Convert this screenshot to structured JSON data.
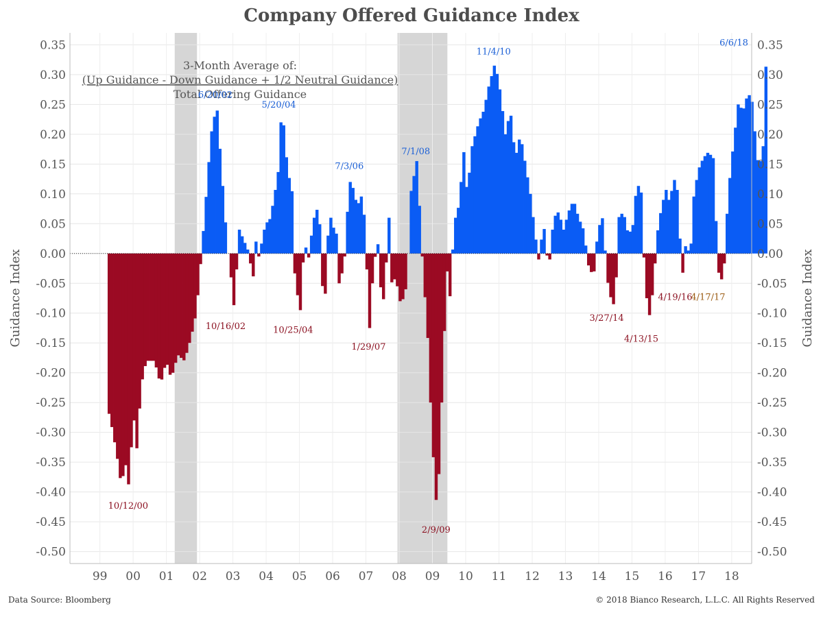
{
  "chart_data": {
    "type": "bar",
    "title": "Company Offered Guidance Index",
    "subtitle": [
      "3-Month Average of:",
      "(Up Guidance - Down Guidance + 1/2 Neutral Guidance)",
      "Total Offering Guidance"
    ],
    "ylabel_left": "Guidance Index",
    "ylabel_right": "Guidance Index",
    "ylim": [
      -0.52,
      0.37
    ],
    "xlim": [
      1998.1,
      2018.6
    ],
    "y_ticks": [
      0.35,
      0.3,
      0.25,
      0.2,
      0.15,
      0.1,
      0.05,
      0.0,
      -0.05,
      -0.1,
      -0.15,
      -0.2,
      -0.25,
      -0.3,
      -0.35,
      -0.4,
      -0.45,
      -0.5
    ],
    "y_tick_labels": [
      "0.35",
      "0.30",
      "0.25",
      "0.20",
      "0.15",
      "0.10",
      "0.05",
      "0.00",
      "-0.05",
      "-0.10",
      "-0.15",
      "-0.20",
      "-0.25",
      "-0.30",
      "-0.35",
      "-0.40",
      "-0.45",
      "-0.50"
    ],
    "x_ticks": [
      1999,
      2000,
      2001,
      2002,
      2003,
      2004,
      2005,
      2006,
      2007,
      2008,
      2009,
      2010,
      2011,
      2012,
      2013,
      2014,
      2015,
      2016,
      2017,
      2018
    ],
    "x_tick_labels": [
      "99",
      "00",
      "01",
      "02",
      "03",
      "04",
      "05",
      "06",
      "07",
      "08",
      "09",
      "10",
      "11",
      "12",
      "13",
      "14",
      "15",
      "16",
      "17",
      "18"
    ],
    "grid": true,
    "colors": {
      "positive": "#0a5cf5",
      "negative": "#9b0a23",
      "recession": "#d6d6d6",
      "label_blue": "#1a5fd6",
      "label_red": "#8b1020",
      "label_orange": "#9a5a10"
    },
    "recessions": [
      [
        2001.25,
        2001.92
      ],
      [
        2007.95,
        2009.45
      ]
    ],
    "series": [
      {
        "values": [
          [
            1999.15,
            0
          ],
          [
            1999.2,
            -0.26
          ],
          [
            1999.35,
            -0.3
          ],
          [
            1999.5,
            -0.35
          ],
          [
            1999.6,
            -0.39
          ],
          [
            1999.72,
            -0.35
          ],
          [
            1999.85,
            -0.4
          ],
          [
            1999.95,
            -0.25
          ],
          [
            2000.05,
            -0.34
          ],
          [
            2000.2,
            -0.22
          ],
          [
            2000.35,
            -0.18
          ],
          [
            2000.5,
            -0.18
          ],
          [
            2000.6,
            -0.18
          ],
          [
            2000.78,
            -0.22
          ],
          [
            2000.95,
            -0.18
          ],
          [
            2001.1,
            -0.21
          ],
          [
            2001.3,
            -0.17
          ],
          [
            2001.5,
            -0.18
          ],
          [
            2001.7,
            -0.14
          ],
          [
            2001.85,
            -0.1
          ],
          [
            2001.95,
            -0.04
          ],
          [
            2002.1,
            0.06
          ],
          [
            2002.3,
            0.2
          ],
          [
            2002.47,
            0.25
          ],
          [
            2002.6,
            0.15
          ],
          [
            2002.75,
            0.04
          ],
          [
            2002.85,
            -0.02
          ],
          [
            2002.95,
            -0.06
          ],
          [
            2003.0,
            -0.1
          ],
          [
            2003.05,
            -0.04
          ],
          [
            2003.15,
            0.04
          ],
          [
            2003.3,
            0.02
          ],
          [
            2003.45,
            0.0
          ],
          [
            2003.55,
            -0.05
          ],
          [
            2003.65,
            0.02
          ],
          [
            2003.75,
            -0.01
          ],
          [
            2003.85,
            0.03
          ],
          [
            2003.95,
            0.05
          ],
          [
            2004.1,
            0.06
          ],
          [
            2004.2,
            0.1
          ],
          [
            2004.3,
            0.12
          ],
          [
            2004.4,
            0.22
          ],
          [
            2004.46,
            0.23
          ],
          [
            2004.6,
            0.14
          ],
          [
            2004.75,
            0.1
          ],
          [
            2004.82,
            -0.04
          ],
          [
            2004.9,
            -0.07
          ],
          [
            2004.97,
            -0.11
          ],
          [
            2005.05,
            -0.02
          ],
          [
            2005.15,
            0.01
          ],
          [
            2005.25,
            -0.01
          ],
          [
            2005.35,
            0.05
          ],
          [
            2005.45,
            0.07
          ],
          [
            2005.55,
            0.08
          ],
          [
            2005.62,
            -0.05
          ],
          [
            2005.75,
            -0.07
          ],
          [
            2005.85,
            0.08
          ],
          [
            2005.95,
            0.04
          ],
          [
            2006.05,
            0.05
          ],
          [
            2006.15,
            -0.05
          ],
          [
            2006.3,
            -0.02
          ],
          [
            2006.4,
            0.07
          ],
          [
            2006.5,
            0.13
          ],
          [
            2006.6,
            0.1
          ],
          [
            2006.7,
            0.08
          ],
          [
            2006.85,
            0.1
          ],
          [
            2006.95,
            0.03
          ],
          [
            2007.05,
            -0.14
          ],
          [
            2007.15,
            -0.05
          ],
          [
            2007.3,
            0.03
          ],
          [
            2007.45,
            -0.1
          ],
          [
            2007.55,
            -0.03
          ],
          [
            2007.65,
            0.06
          ],
          [
            2007.75,
            -0.07
          ],
          [
            2007.85,
            -0.03
          ],
          [
            2007.95,
            -0.08
          ],
          [
            2008.05,
            -0.08
          ],
          [
            2008.2,
            -0.05
          ],
          [
            2008.3,
            0.1
          ],
          [
            2008.5,
            0.16
          ],
          [
            2008.6,
            0.04
          ],
          [
            2008.7,
            -0.05
          ],
          [
            2008.8,
            -0.12
          ],
          [
            2008.9,
            -0.25
          ],
          [
            2009.0,
            -0.36
          ],
          [
            2009.1,
            -0.44
          ],
          [
            2009.2,
            -0.3
          ],
          [
            2009.3,
            -0.15
          ],
          [
            2009.4,
            -0.03
          ],
          [
            2009.5,
            -0.08
          ],
          [
            2009.6,
            0.05
          ],
          [
            2009.75,
            0.08
          ],
          [
            2009.9,
            0.17
          ],
          [
            2010.0,
            0.1
          ],
          [
            2010.15,
            0.18
          ],
          [
            2010.35,
            0.22
          ],
          [
            2010.5,
            0.24
          ],
          [
            2010.65,
            0.28
          ],
          [
            2010.84,
            0.32
          ],
          [
            2011.0,
            0.27
          ],
          [
            2011.15,
            0.2
          ],
          [
            2011.3,
            0.24
          ],
          [
            2011.45,
            0.16
          ],
          [
            2011.6,
            0.2
          ],
          [
            2011.75,
            0.15
          ],
          [
            2011.9,
            0.1
          ],
          [
            2012.05,
            0.03
          ],
          [
            2012.15,
            -0.01
          ],
          [
            2012.3,
            0.05
          ],
          [
            2012.45,
            -0.03
          ],
          [
            2012.6,
            0.06
          ],
          [
            2012.75,
            0.07
          ],
          [
            2012.9,
            0.04
          ],
          [
            2013.05,
            0.07
          ],
          [
            2013.2,
            0.09
          ],
          [
            2013.35,
            0.06
          ],
          [
            2013.5,
            0.04
          ],
          [
            2013.65,
            -0.02
          ],
          [
            2013.8,
            -0.04
          ],
          [
            2013.9,
            0.02
          ],
          [
            2014.05,
            0.07
          ],
          [
            2014.25,
            -0.06
          ],
          [
            2014.35,
            -0.08
          ],
          [
            2014.45,
            -0.09
          ],
          [
            2014.55,
            0.06
          ],
          [
            2014.7,
            0.07
          ],
          [
            2014.85,
            0.03
          ],
          [
            2015.0,
            0.05
          ],
          [
            2015.1,
            0.12
          ],
          [
            2015.25,
            0.1
          ],
          [
            2015.35,
            -0.06
          ],
          [
            2015.45,
            -0.09
          ],
          [
            2015.5,
            -0.11
          ],
          [
            2015.6,
            -0.05
          ],
          [
            2015.75,
            0.05
          ],
          [
            2015.9,
            0.09
          ],
          [
            2016.0,
            0.11
          ],
          [
            2016.1,
            0.08
          ],
          [
            2016.2,
            0.13
          ],
          [
            2016.35,
            0.1
          ],
          [
            2016.45,
            -0.05
          ],
          [
            2016.6,
            0.03
          ],
          [
            2016.7,
            -0.02
          ],
          [
            2016.8,
            0.09
          ],
          [
            2016.95,
            0.14
          ],
          [
            2017.1,
            0.16
          ],
          [
            2017.25,
            0.17
          ],
          [
            2017.4,
            0.16
          ],
          [
            2017.55,
            -0.03
          ],
          [
            2017.7,
            -0.05
          ],
          [
            2017.85,
            0.1
          ],
          [
            2018.0,
            0.18
          ],
          [
            2018.15,
            0.25
          ],
          [
            2018.3,
            0.24
          ],
          [
            2018.45,
            0.27
          ],
          [
            2018.6,
            0.25
          ],
          [
            2018.7,
            0.16
          ],
          [
            2018.8,
            0.15
          ],
          [
            2018.9,
            0.18
          ],
          [
            2019.0,
            0.34
          ]
        ]
      }
    ],
    "annotations": [
      {
        "label": "6/20/02",
        "x": 2002.47,
        "y": 0.25,
        "color": "label_blue"
      },
      {
        "label": "5/20/04",
        "x": 2004.38,
        "y": 0.233,
        "color": "label_blue"
      },
      {
        "label": "7/3/06",
        "x": 2006.5,
        "y": 0.13,
        "color": "label_blue"
      },
      {
        "label": "7/1/08",
        "x": 2008.5,
        "y": 0.155,
        "color": "label_blue"
      },
      {
        "label": "11/4/10",
        "x": 2010.84,
        "y": 0.322,
        "color": "label_blue"
      },
      {
        "label": "6/6/18",
        "x": 2019.0,
        "y": 0.337,
        "color": "label_blue"
      },
      {
        "label": "10/12/00",
        "x": 1999.85,
        "y": -0.405,
        "color": "label_red"
      },
      {
        "label": "10/16/02",
        "x": 2002.78,
        "y": -0.104,
        "color": "label_red"
      },
      {
        "label": "10/25/04",
        "x": 2004.81,
        "y": -0.11,
        "color": "label_red"
      },
      {
        "label": "1/29/07",
        "x": 2007.08,
        "y": -0.138,
        "color": "label_red"
      },
      {
        "label": "2/9/09",
        "x": 2009.11,
        "y": -0.445,
        "color": "label_red"
      },
      {
        "label": "3/27/14",
        "x": 2014.24,
        "y": -0.09,
        "color": "label_red"
      },
      {
        "label": "4/13/15",
        "x": 2015.28,
        "y": -0.125,
        "color": "label_red"
      },
      {
        "label": "4/19/16",
        "x": 2016.3,
        "y": -0.055,
        "color": "label_red"
      },
      {
        "label": "4/17/17",
        "x": 2017.29,
        "y": -0.055,
        "color": "label_orange"
      }
    ]
  },
  "footer": {
    "source": "Data Source: Bloomberg",
    "copyright": "© 2018 Bianco Research, L.L.C. All Rights Reserved"
  }
}
